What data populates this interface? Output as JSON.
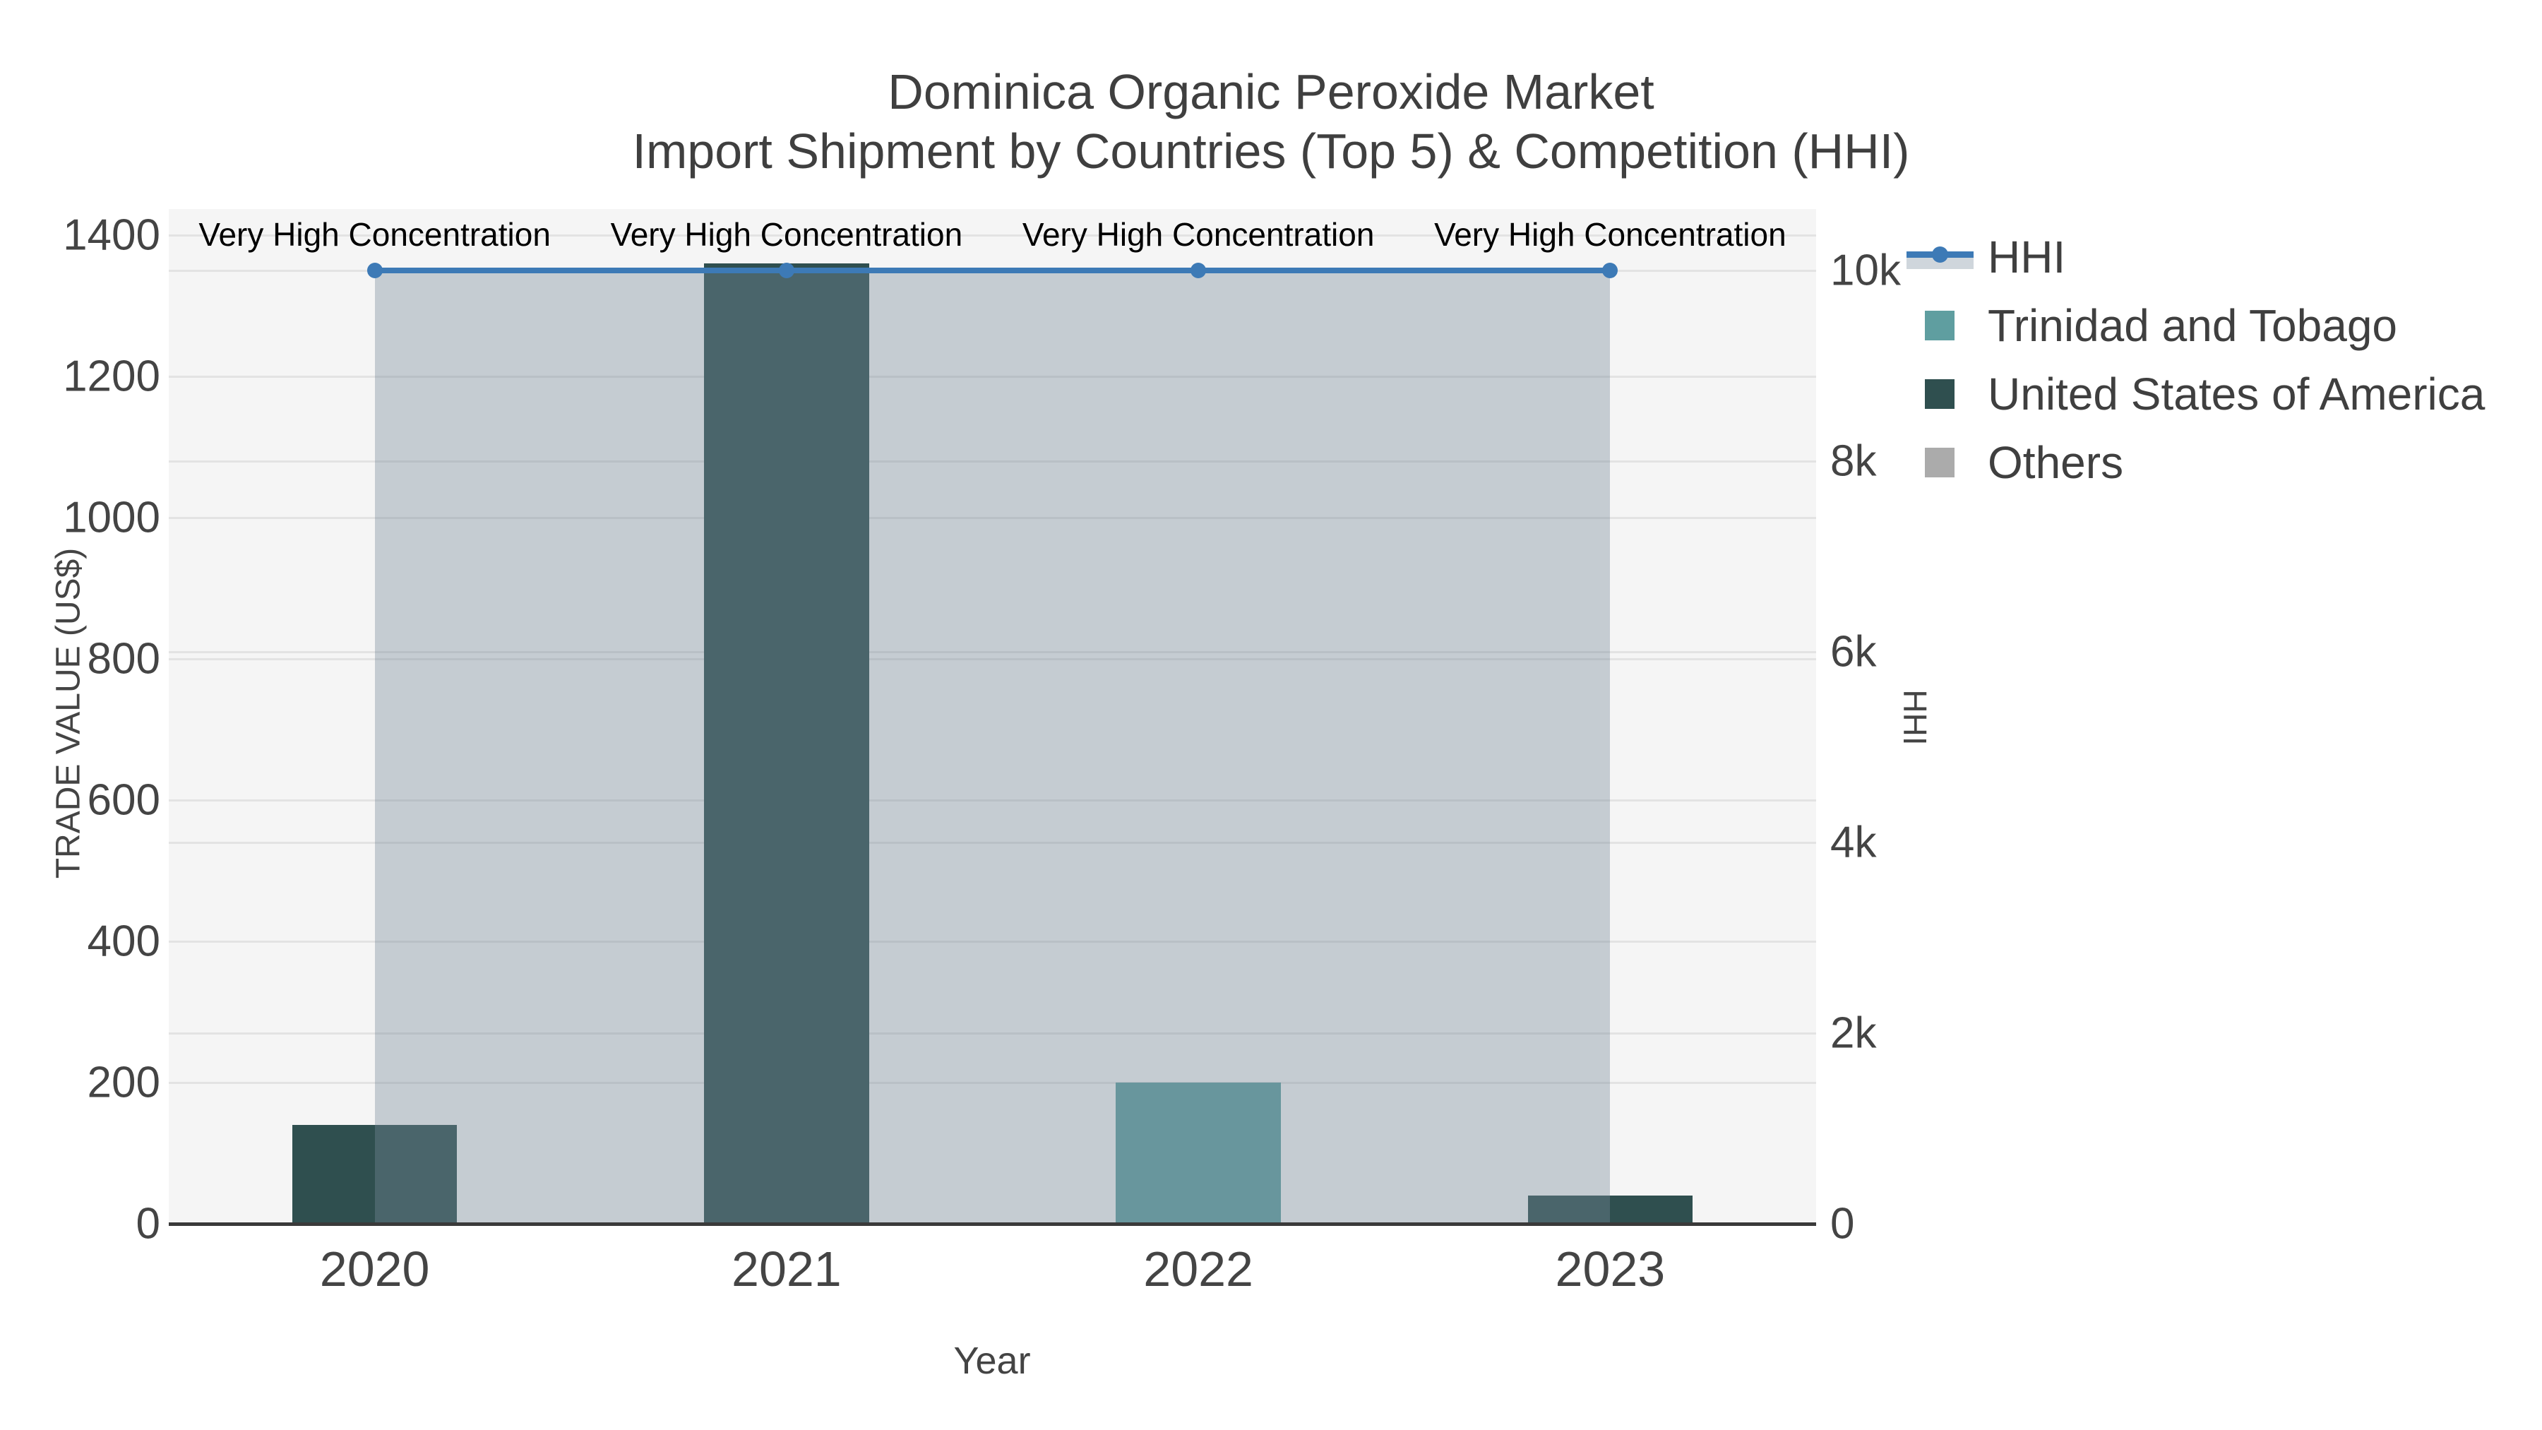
{
  "title": "Dominica Organic Peroxide Market",
  "subtitle": "Import Shipment by Countries (Top 5) & Competition (HHI)",
  "axes": {
    "x": {
      "title": "Year",
      "ticks": [
        "2020",
        "2021",
        "2022",
        "2023"
      ],
      "tick_values": [
        2020,
        2021,
        2022,
        2023
      ],
      "range": [
        2019.5,
        2023.5
      ]
    },
    "y_left": {
      "title": "TRADE VALUE (US$)",
      "ticks": [
        "0",
        "200",
        "400",
        "600",
        "800",
        "1000",
        "1200",
        "1400"
      ],
      "tick_values": [
        0,
        200,
        400,
        600,
        800,
        1000,
        1200,
        1400
      ],
      "range": [
        0,
        1437
      ]
    },
    "y_right": {
      "title": "HHI",
      "ticks": [
        "0",
        "2k",
        "4k",
        "6k",
        "8k",
        "10k"
      ],
      "tick_values": [
        0,
        2000,
        4000,
        6000,
        8000,
        10000
      ],
      "range": [
        0,
        10644
      ]
    }
  },
  "legend": {
    "items": [
      {
        "label": "HHI",
        "type": "line",
        "color": "#3d7ab6"
      },
      {
        "label": "Trinidad and Tobago",
        "type": "square",
        "color": "#5f9ea0"
      },
      {
        "label": "United States of America",
        "type": "square",
        "color": "#2f4f4f"
      },
      {
        "label": "Others",
        "type": "square",
        "color": "#ababab"
      }
    ]
  },
  "annotations": {
    "text": "Very High Concentration",
    "x_positions": [
      2020,
      2021,
      2022,
      2023
    ]
  },
  "colors": {
    "plot_background": "#f5f5f5",
    "gridline": "#e3e3e3",
    "axis_line": "#3a3a3a",
    "hhi_line": "#3d7ab6",
    "hhi_area_fill": "rgba(119,136,153,0.38)",
    "trinidad": "#5f9ea0",
    "usa": "#2f4f4f",
    "others": "#ababab",
    "tick_text": "#444444",
    "title_text": "#3f3f3f",
    "annotation_text": "#000000"
  },
  "chart_data": {
    "type": "bar+line",
    "title": "Dominica Organic Peroxide Market — Import Shipment by Countries (Top 5) & Competition (HHI)",
    "categories": [
      2020,
      2021,
      2022,
      2023
    ],
    "series": [
      {
        "name": "Trinidad and Tobago",
        "type": "bar",
        "axis": "left",
        "color": "#5f9ea0",
        "values": [
          0,
          0,
          200,
          0
        ]
      },
      {
        "name": "United States of America",
        "type": "bar",
        "axis": "left",
        "color": "#2f4f4f",
        "values": [
          140,
          1360,
          0,
          40
        ]
      },
      {
        "name": "Others",
        "type": "bar",
        "axis": "left",
        "color": "#ababab",
        "values": [
          0,
          0,
          0,
          0
        ]
      },
      {
        "name": "HHI",
        "type": "line",
        "axis": "right",
        "color": "#3d7ab6",
        "fill_below": "rgba(119,136,153,0.38)",
        "values": [
          10000,
          10000,
          10000,
          10000
        ]
      }
    ],
    "bar_width": 0.4,
    "xlabel": "Year",
    "ylabel": "TRADE VALUE (US$)",
    "ylabel_right": "HHI",
    "ylim": [
      0,
      1437
    ],
    "y2lim": [
      0,
      10644
    ],
    "grid": true,
    "legend_position": "right",
    "annotation_text": "Very High Concentration",
    "annotation_years": [
      2020,
      2021,
      2022,
      2023
    ]
  }
}
